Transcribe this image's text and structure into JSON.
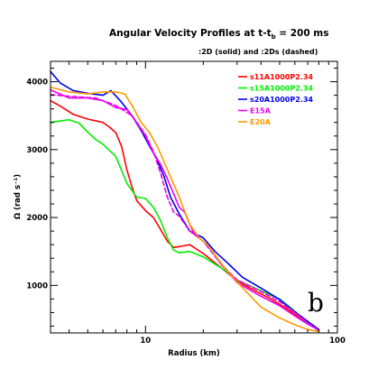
{
  "chart_data": {
    "type": "line",
    "title": "Angular Velocity Profiles at t-t",
    "title_sub": "b",
    "title_tail": " = 200 ms",
    "subtitle": ":2D (solid) and :2Ds (dashed)",
    "xlabel": "Radius (km)",
    "ylabel": "Ω (rad s⁻¹)",
    "x_scale": "log",
    "xlim": [
      3.2,
      100
    ],
    "ylim": [
      300,
      4300
    ],
    "x_ticks": [
      {
        "v": 10,
        "label": "10"
      },
      {
        "v": 100,
        "label": "100"
      }
    ],
    "y_ticks": [
      {
        "v": 1000,
        "label": "1000"
      },
      {
        "v": 2000,
        "label": "2000"
      },
      {
        "v": 3000,
        "label": "3000"
      },
      {
        "v": 4000,
        "label": "4000"
      }
    ],
    "panel_label": "b",
    "grid": false,
    "legend_position": "top-right",
    "series": [
      {
        "name": "s11A1000P2.34",
        "color": "#ff0000",
        "style": "solid",
        "points": [
          [
            3.2,
            3720
          ],
          [
            3.6,
            3640
          ],
          [
            4.2,
            3520
          ],
          [
            5,
            3450
          ],
          [
            6,
            3400
          ],
          [
            6.5,
            3330
          ],
          [
            7,
            3250
          ],
          [
            7.5,
            3050
          ],
          [
            8,
            2700
          ],
          [
            8.5,
            2450
          ],
          [
            9,
            2250
          ],
          [
            10,
            2100
          ],
          [
            11,
            2000
          ],
          [
            12,
            1820
          ],
          [
            13,
            1650
          ],
          [
            14,
            1560
          ],
          [
            15,
            1570
          ],
          [
            17,
            1600
          ],
          [
            20,
            1470
          ],
          [
            25,
            1250
          ],
          [
            30,
            1070
          ],
          [
            35,
            960
          ],
          [
            45,
            800
          ],
          [
            55,
            650
          ],
          [
            65,
            500
          ],
          [
            75,
            390
          ],
          [
            80,
            330
          ]
        ]
      },
      {
        "name": "s15A1000P2.34",
        "color": "#00ee00",
        "style": "solid",
        "points": [
          [
            3.2,
            3400
          ],
          [
            4,
            3440
          ],
          [
            4.5,
            3390
          ],
          [
            5,
            3260
          ],
          [
            5.5,
            3150
          ],
          [
            6,
            3080
          ],
          [
            7,
            2900
          ],
          [
            8,
            2500
          ],
          [
            9,
            2300
          ],
          [
            10,
            2280
          ],
          [
            11,
            2150
          ],
          [
            12,
            1950
          ],
          [
            13,
            1700
          ],
          [
            14,
            1520
          ],
          [
            15,
            1480
          ],
          [
            17,
            1500
          ],
          [
            20,
            1420
          ],
          [
            25,
            1250
          ],
          [
            30,
            1080
          ],
          [
            40,
            920
          ],
          [
            50,
            800
          ],
          [
            60,
            620
          ],
          [
            70,
            450
          ],
          [
            80,
            330
          ]
        ]
      },
      {
        "name": "s20A1000P2.34",
        "color": "#0000ee",
        "style": "solid",
        "points": [
          [
            3.2,
            4150
          ],
          [
            3.6,
            3980
          ],
          [
            4.2,
            3870
          ],
          [
            5,
            3830
          ],
          [
            6,
            3800
          ],
          [
            6.6,
            3870
          ],
          [
            7.5,
            3700
          ],
          [
            8.5,
            3500
          ],
          [
            9.5,
            3280
          ],
          [
            10.5,
            3050
          ],
          [
            11.5,
            2850
          ],
          [
            12.5,
            2600
          ],
          [
            13.5,
            2300
          ],
          [
            15,
            2050
          ],
          [
            17,
            1800
          ],
          [
            20,
            1700
          ],
          [
            23,
            1500
          ],
          [
            27,
            1320
          ],
          [
            32,
            1120
          ],
          [
            40,
            960
          ],
          [
            50,
            790
          ],
          [
            60,
            610
          ],
          [
            70,
            470
          ],
          [
            80,
            350
          ]
        ]
      },
      {
        "name": "E15A",
        "color": "#ee00ee",
        "style": "solid",
        "points": [
          [
            3.2,
            3880
          ],
          [
            4,
            3760
          ],
          [
            5,
            3760
          ],
          [
            6,
            3720
          ],
          [
            7,
            3620
          ],
          [
            8,
            3590
          ],
          [
            9,
            3400
          ],
          [
            10,
            3200
          ],
          [
            11,
            2950
          ],
          [
            12,
            2780
          ],
          [
            13,
            2570
          ],
          [
            14,
            2350
          ],
          [
            15,
            2150
          ],
          [
            16,
            2080
          ],
          [
            17,
            1900
          ],
          [
            18,
            1750
          ],
          [
            20,
            1650
          ],
          [
            22,
            1520
          ],
          [
            25,
            1300
          ],
          [
            30,
            1040
          ],
          [
            40,
            840
          ],
          [
            50,
            700
          ],
          [
            60,
            550
          ],
          [
            70,
            430
          ],
          [
            80,
            340
          ]
        ]
      },
      {
        "name": "E15A",
        "color": "#ee00ee",
        "style": "dashed",
        "in_legend": false,
        "points": [
          [
            3.2,
            3810
          ],
          [
            4.2,
            3780
          ],
          [
            5.5,
            3760
          ],
          [
            7,
            3650
          ],
          [
            8.5,
            3500
          ],
          [
            10,
            3220
          ],
          [
            11,
            2970
          ],
          [
            12,
            2650
          ],
          [
            13,
            2300
          ],
          [
            14,
            2080
          ],
          [
            15,
            2020
          ],
          [
            17,
            1800
          ],
          [
            20,
            1650
          ],
          [
            25,
            1300
          ],
          [
            30,
            1080
          ],
          [
            40,
            910
          ],
          [
            50,
            760
          ],
          [
            60,
            600
          ],
          [
            70,
            450
          ],
          [
            80,
            340
          ]
        ]
      },
      {
        "name": "E20A",
        "color": "#ff9900",
        "style": "solid",
        "points": [
          [
            3.2,
            3920
          ],
          [
            4,
            3850
          ],
          [
            5,
            3820
          ],
          [
            6,
            3850
          ],
          [
            7,
            3850
          ],
          [
            7.8,
            3820
          ],
          [
            8.5,
            3650
          ],
          [
            9.5,
            3400
          ],
          [
            10.5,
            3250
          ],
          [
            11.5,
            3050
          ],
          [
            12.5,
            2820
          ],
          [
            13.5,
            2600
          ],
          [
            15,
            2300
          ],
          [
            17,
            1900
          ],
          [
            19,
            1700
          ],
          [
            21,
            1600
          ],
          [
            23,
            1450
          ],
          [
            26,
            1250
          ],
          [
            30,
            1050
          ],
          [
            35,
            850
          ],
          [
            40,
            680
          ],
          [
            50,
            520
          ],
          [
            60,
            420
          ],
          [
            70,
            350
          ],
          [
            80,
            320
          ]
        ]
      }
    ]
  }
}
